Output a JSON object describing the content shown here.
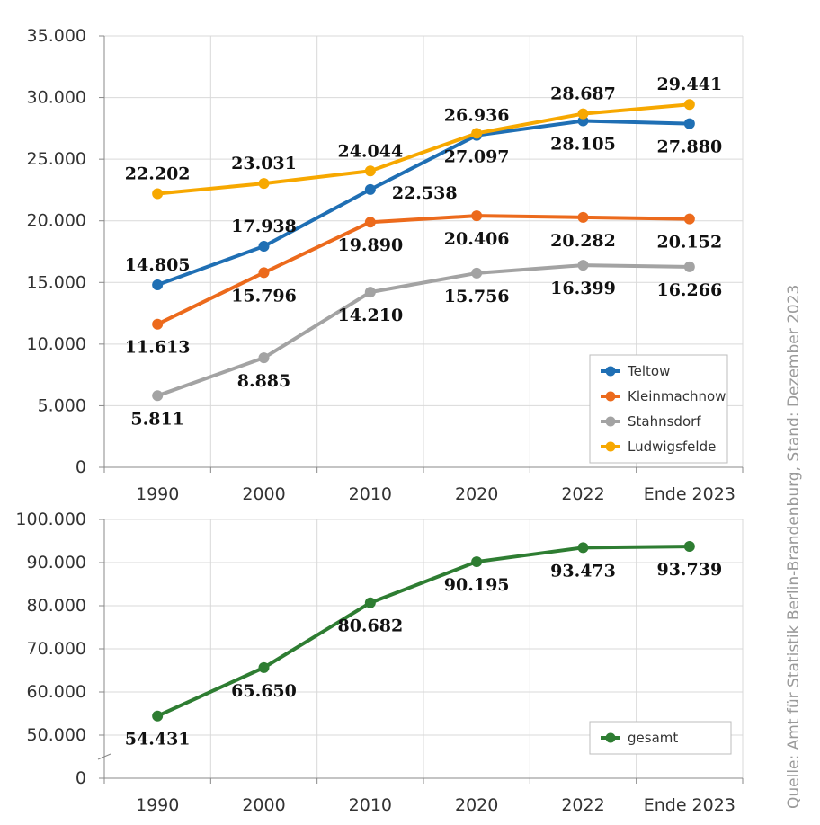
{
  "source": "Quelle: Amt für Statistik Berlin-Brandenburg, Stand: Dezember 2023",
  "chart_data": [
    {
      "type": "line",
      "title": "",
      "xlabel": "",
      "ylabel": "",
      "categories": [
        "1990",
        "2000",
        "2010",
        "2020",
        "2022",
        "Ende 2023"
      ],
      "ylim": [
        0,
        35000
      ],
      "yticks": [
        0,
        5000,
        10000,
        15000,
        20000,
        25000,
        30000,
        35000
      ],
      "ytick_labels": [
        "0",
        "5.000",
        "10.000",
        "15.000",
        "20.000",
        "25.000",
        "30.000",
        "35.000"
      ],
      "grid": true,
      "legend_position": "bottom-right",
      "series": [
        {
          "name": "Teltow",
          "color": "#1f6fb4",
          "values": [
            14805,
            17938,
            22538,
            26936,
            28105,
            27880
          ],
          "labels": [
            "14.805",
            "17.938",
            "22.538",
            "26.936",
            "28.105",
            "27.880"
          ],
          "label_positions": [
            "above",
            "above",
            "below-right",
            "above",
            "below",
            "below"
          ]
        },
        {
          "name": "Kleinmachnow",
          "color": "#ec6a1c",
          "values": [
            11613,
            15796,
            19890,
            20406,
            20282,
            20152
          ],
          "labels": [
            "11.613",
            "15.796",
            "19.890",
            "20.406",
            "20.282",
            "20.152"
          ],
          "label_positions": [
            "below",
            "below",
            "below",
            "below",
            "below",
            "below"
          ]
        },
        {
          "name": "Stahnsdorf",
          "color": "#a3a3a3",
          "values": [
            5811,
            8885,
            14210,
            15756,
            16399,
            16266
          ],
          "labels": [
            "5.811",
            "8.885",
            "14.210",
            "15.756",
            "16.399",
            "16.266"
          ],
          "label_positions": [
            "below",
            "below",
            "below",
            "below",
            "below",
            "below"
          ]
        },
        {
          "name": "Ludwigsfelde",
          "color": "#f7a800",
          "values": [
            22202,
            23031,
            24044,
            27097,
            28687,
            29441
          ],
          "labels": [
            "22.202",
            "23.031",
            "24.044",
            "27.097",
            "28.687",
            "29.441"
          ],
          "label_positions": [
            "above",
            "above",
            "above",
            "below",
            "above",
            "above"
          ]
        }
      ]
    },
    {
      "type": "line",
      "title": "",
      "xlabel": "",
      "ylabel": "",
      "categories": [
        "1990",
        "2000",
        "2010",
        "2020",
        "2022",
        "Ende 2023"
      ],
      "ylim": [
        0,
        100000
      ],
      "yticks": [
        0,
        50000,
        60000,
        70000,
        80000,
        90000,
        100000
      ],
      "ytick_labels": [
        "0",
        "50.000",
        "60.000",
        "70.000",
        "80.000",
        "90.000",
        "100.000"
      ],
      "broken_axis": true,
      "grid": true,
      "legend_position": "bottom-right",
      "series": [
        {
          "name": "gesamt",
          "color": "#2e7d32",
          "values": [
            54431,
            65650,
            80682,
            90195,
            93473,
            93739
          ],
          "labels": [
            "54.431",
            "65.650",
            "80.682",
            "90.195",
            "93.473",
            "93.739"
          ],
          "label_positions": [
            "below",
            "below",
            "below",
            "below",
            "below",
            "below"
          ]
        }
      ]
    }
  ]
}
